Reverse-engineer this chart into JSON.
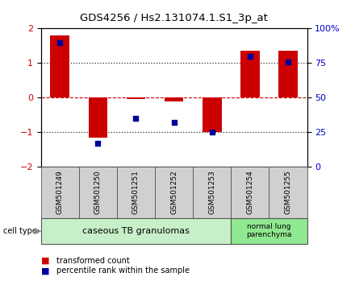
{
  "title": "GDS4256 / Hs2.131074.1.S1_3p_at",
  "samples": [
    "GSM501249",
    "GSM501250",
    "GSM501251",
    "GSM501252",
    "GSM501253",
    "GSM501254",
    "GSM501255"
  ],
  "red_values": [
    1.8,
    -1.15,
    -0.05,
    -0.1,
    -1.0,
    1.35,
    1.35
  ],
  "blue_values_pct": [
    90,
    17,
    35,
    32,
    25,
    80,
    76
  ],
  "ylim": [
    -2,
    2
  ],
  "yticks_left": [
    -2,
    -1,
    0,
    1,
    2
  ],
  "yticks_right": [
    0,
    25,
    50,
    75,
    100
  ],
  "group1_label": "caseous TB granulomas",
  "group2_label": "normal lung\nparenchyma",
  "group1_count": 5,
  "group2_count": 2,
  "legend_red": "transformed count",
  "legend_blue": "percentile rank within the sample",
  "cell_type_label": "cell type",
  "bar_color": "#cc0000",
  "dot_color": "#000099",
  "group1_bg": "#c8f0c8",
  "group2_bg": "#90e890",
  "sample_bg": "#d0d0d0",
  "zero_line_color": "#cc0000",
  "dotted_line_color": "#333333",
  "right_ytick_labels": [
    "0",
    "25",
    "50",
    "75",
    "100%"
  ]
}
